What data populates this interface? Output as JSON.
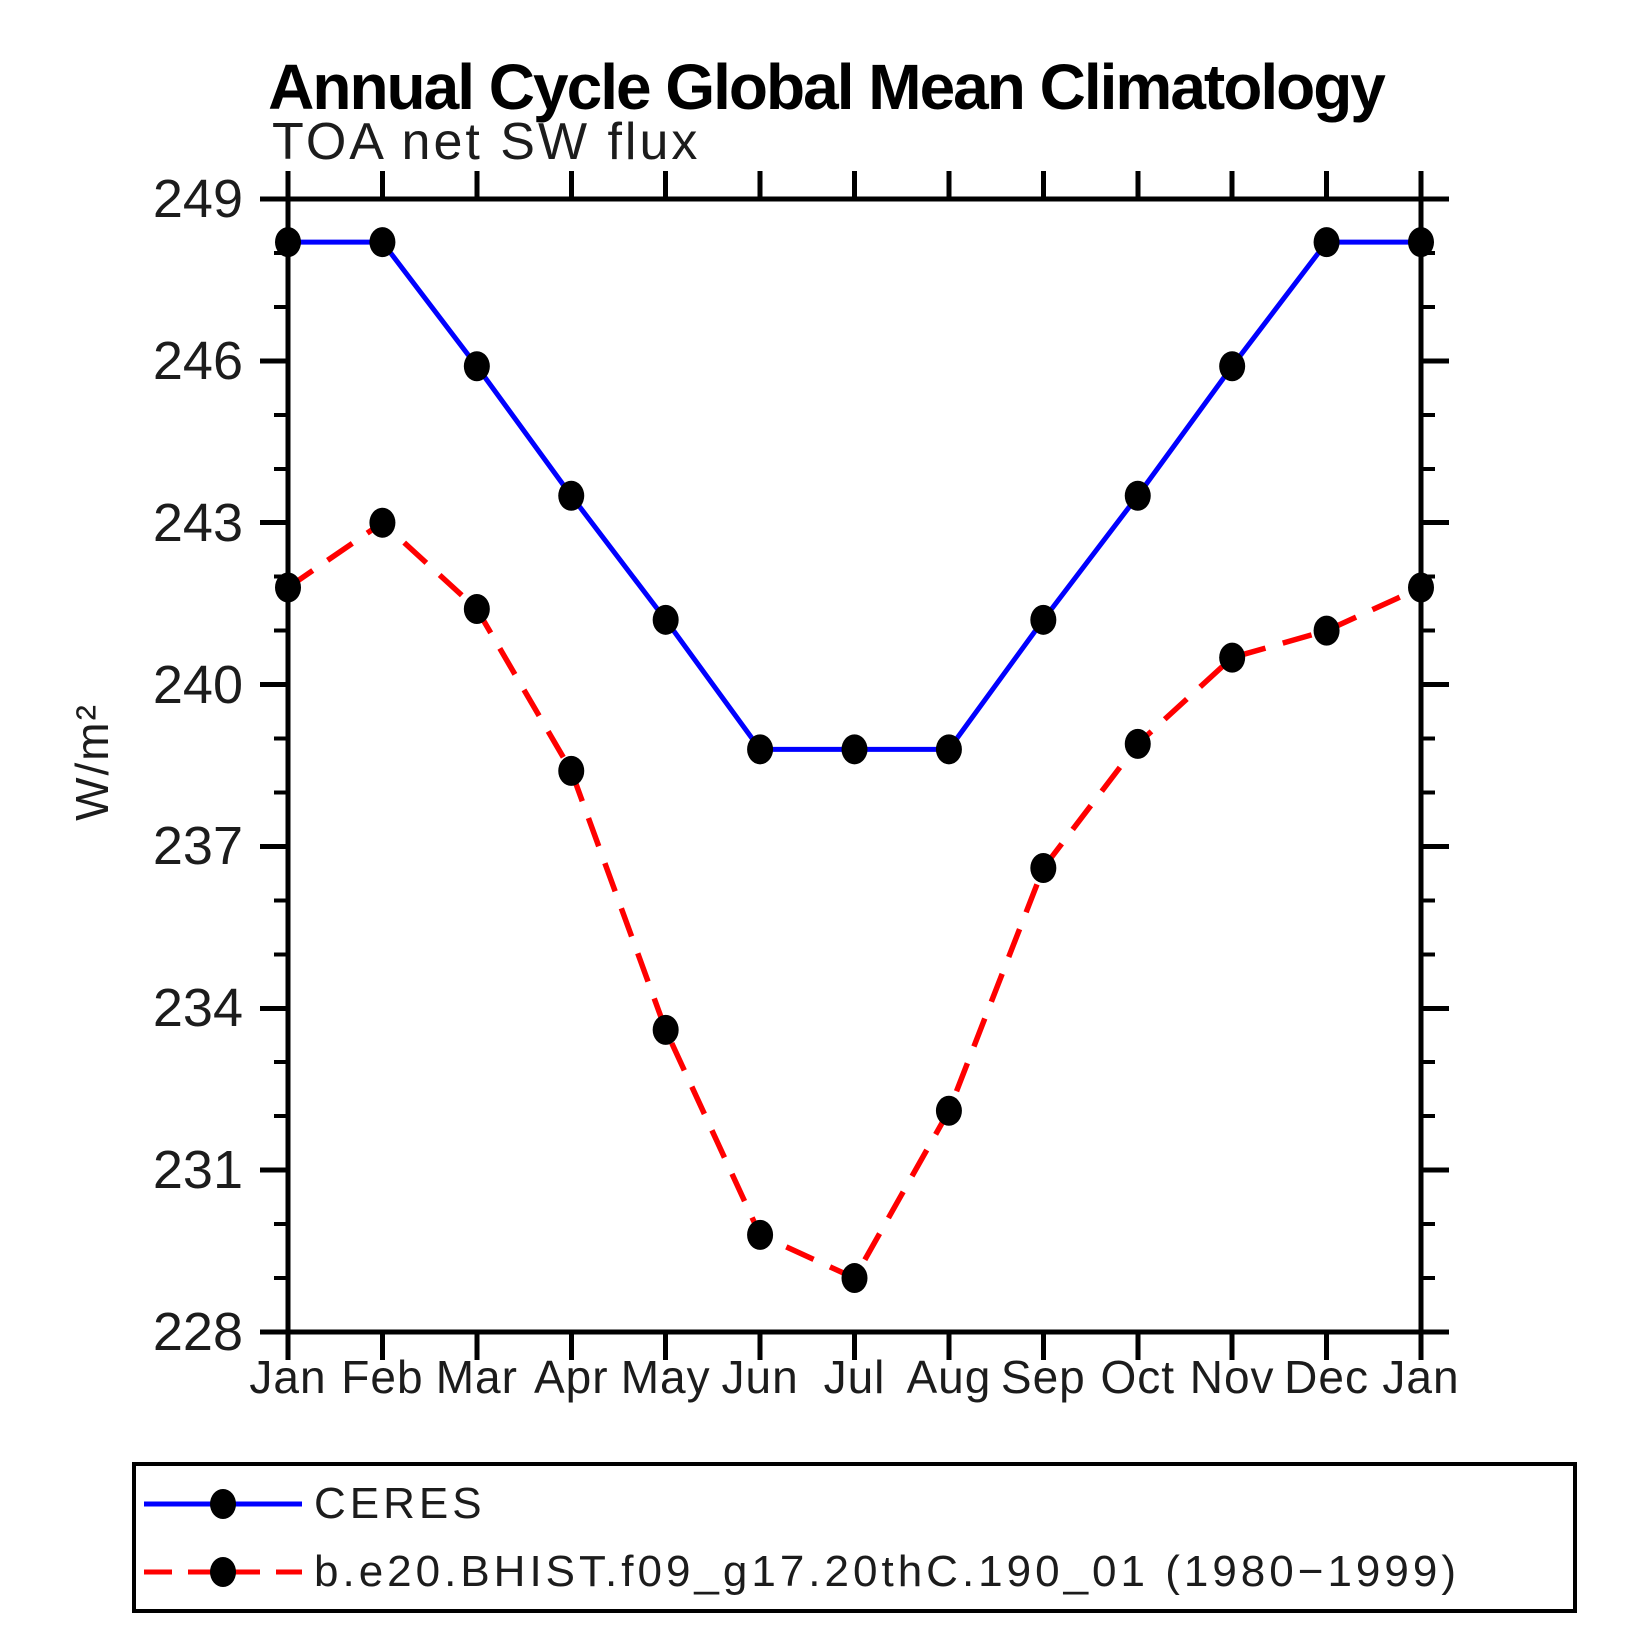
{
  "chart_data": {
    "type": "line",
    "suptitle": "Annual Cycle Global Mean Climatology",
    "title": "TOA net SW flux",
    "ylabel": "W/m²",
    "xlabel": "",
    "categories": [
      "Jan",
      "Feb",
      "Mar",
      "Apr",
      "May",
      "Jun",
      "Jul",
      "Aug",
      "Sep",
      "Oct",
      "Nov",
      "Dec",
      "Jan"
    ],
    "series": [
      {
        "name": "CERES",
        "color": "#0000ff",
        "line_style": "solid",
        "marker": "filled-circle",
        "marker_color": "#000000",
        "values": [
          248.2,
          248.2,
          245.9,
          243.5,
          241.2,
          238.8,
          238.8,
          238.8,
          241.2,
          243.5,
          245.9,
          248.2,
          248.2
        ]
      },
      {
        "name": "b.e20.BHIST.f09_g17.20thC.190_01 (1980−1999)",
        "color": "#ff0000",
        "line_style": "dashed",
        "marker": "filled-circle",
        "marker_color": "#000000",
        "values": [
          241.8,
          243.0,
          241.4,
          238.4,
          233.6,
          229.8,
          229.0,
          232.1,
          236.6,
          238.9,
          240.5,
          241.0,
          241.8
        ]
      }
    ],
    "ylim": [
      228,
      249
    ],
    "ytick_step": 3,
    "y_minor_step": 1,
    "ytick_labels": [
      "228",
      "231",
      "234",
      "237",
      "240",
      "243",
      "246",
      "249"
    ],
    "grid": false,
    "legend_position": "bottom-box",
    "axis_color": "#000000"
  }
}
